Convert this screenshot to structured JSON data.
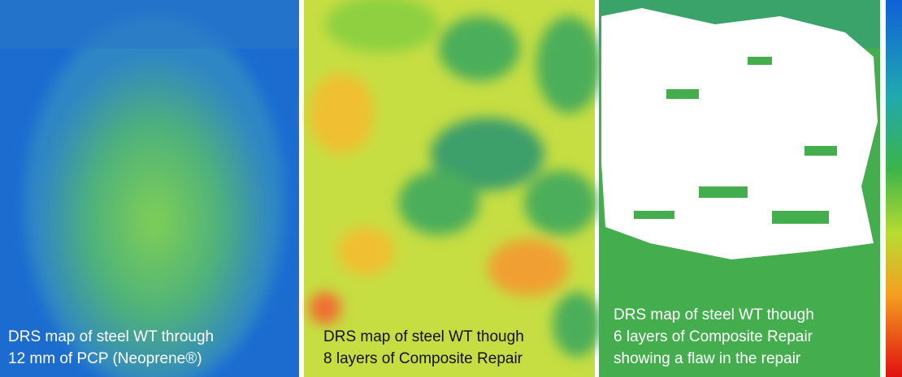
{
  "panels": [
    {
      "caption": [
        "DRS map of steel WT through",
        "12 mm of PCP (Neoprene®)"
      ]
    },
    {
      "caption": [
        "DRS map of steel WT though",
        "8 layers of Composite Repair"
      ]
    },
    {
      "caption": [
        "DRS map of steel WT though",
        "6 layers of Composite Repair",
        "showing a flaw in the repair"
      ]
    }
  ]
}
